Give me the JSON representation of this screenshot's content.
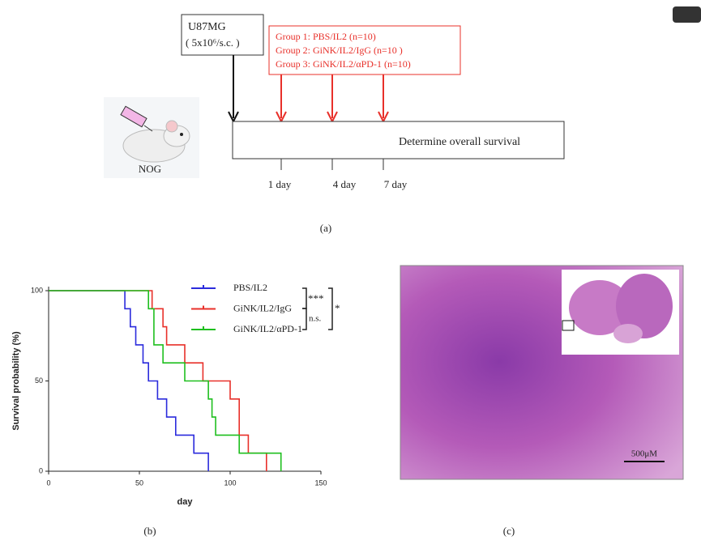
{
  "panel_a": {
    "cell_line": "U87MG",
    "dose": "( 5x10⁶/s.c. )",
    "groups": [
      "Group 1: PBS/IL2  (n=10)",
      "Group 2: GiNK/IL2/IgG (n=10 )",
      "Group 3: GiNK/IL2/αPD-1 (n=10)"
    ],
    "timeline": "Determine overall survival",
    "days": [
      "1 day",
      "4 day",
      "7 day"
    ],
    "mouse": "NOG",
    "label": "(a)"
  },
  "chart_data": {
    "type": "step",
    "ylabel": "Survival probability (%)",
    "xlabel": "day",
    "xlim": [
      0,
      150
    ],
    "ylim": [
      0,
      100
    ],
    "xticks": [
      0,
      50,
      100,
      150
    ],
    "yticks": [
      0,
      50,
      100
    ],
    "series": [
      {
        "name": "PBS/IL2",
        "color": "#2b2bdc",
        "x": [
          0,
          42,
          45,
          48,
          52,
          55,
          60,
          65,
          70,
          80,
          88
        ],
        "values": [
          100,
          90,
          80,
          70,
          60,
          50,
          40,
          30,
          20,
          10,
          0
        ]
      },
      {
        "name": "GiNK/IL2/IgG",
        "color": "#e8302a",
        "x": [
          0,
          57,
          63,
          65,
          75,
          85,
          100,
          105,
          110,
          120
        ],
        "values": [
          100,
          90,
          80,
          70,
          60,
          50,
          40,
          20,
          10,
          0
        ]
      },
      {
        "name": "GiNK/IL2/αPD-1",
        "color": "#1fbf1f",
        "x": [
          0,
          55,
          58,
          63,
          75,
          88,
          90,
          92,
          105,
          128
        ],
        "values": [
          100,
          90,
          70,
          60,
          50,
          40,
          30,
          20,
          10,
          0
        ]
      }
    ],
    "annotations": [
      "***",
      "*",
      "n.s."
    ],
    "label": "(b)"
  },
  "panel_c": {
    "scale_bar": "500μM",
    "label": "(c)"
  }
}
